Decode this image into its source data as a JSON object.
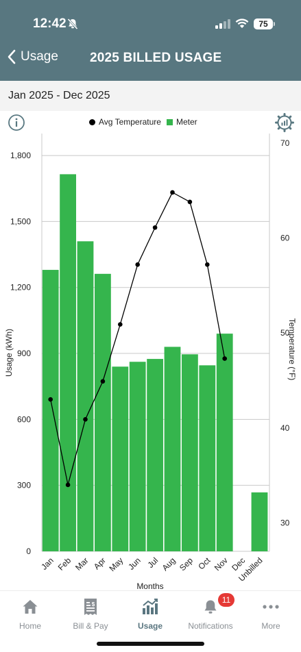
{
  "status_bar": {
    "time": "12:42",
    "battery": "75"
  },
  "nav": {
    "back_label": "Usage",
    "title": "2025 BILLED USAGE"
  },
  "date_range": "Jan 2025 - Dec 2025",
  "legend": {
    "temp_label": "Avg Temperature",
    "meter_label": "Meter"
  },
  "colors": {
    "header": "#587780",
    "bar": "#35b54d",
    "line": "#000000",
    "active_tab": "#5a7680"
  },
  "chart_data": {
    "type": "bar",
    "categories": [
      "Jan",
      "Feb",
      "Mar",
      "Apr",
      "May",
      "Jun",
      "Jul",
      "Aug",
      "Sep",
      "Oct",
      "Nov",
      "Dec",
      "Unbilled"
    ],
    "xlabel": "Months",
    "ylabel": "Usage (kWh)",
    "y2label": "Temperature (°F)",
    "ylim": [
      0,
      1900
    ],
    "y2lim": [
      27,
      71
    ],
    "yticks": [
      0,
      300,
      600,
      900,
      1200,
      1500,
      1800
    ],
    "ytick_labels": [
      "0",
      "300",
      "600",
      "900",
      "1,200",
      "1,500",
      "1,800"
    ],
    "y2ticks": [
      30,
      40,
      50,
      60,
      70
    ],
    "y2tick_labels": [
      "30",
      "40",
      "50",
      "60",
      "70"
    ],
    "grid": true,
    "legend_position": "top",
    "series": [
      {
        "name": "Meter",
        "kind": "bar",
        "values": [
          1280,
          1715,
          1410,
          1262,
          840,
          862,
          875,
          930,
          896,
          846,
          990,
          0,
          268
        ]
      },
      {
        "name": "Avg Temperature",
        "kind": "line",
        "axis": "right",
        "values": [
          43.0,
          34.0,
          40.9,
          44.9,
          50.9,
          57.2,
          61.1,
          64.8,
          63.8,
          57.2,
          47.3,
          null,
          null
        ]
      }
    ]
  },
  "tabs": [
    {
      "label": "Home",
      "icon": "home-icon"
    },
    {
      "label": "Bill & Pay",
      "icon": "bill-icon"
    },
    {
      "label": "Usage",
      "icon": "usage-chart-icon",
      "active": true
    },
    {
      "label": "Notifications",
      "icon": "bell-icon",
      "badge": "11"
    },
    {
      "label": "More",
      "icon": "more-dots-icon"
    }
  ]
}
